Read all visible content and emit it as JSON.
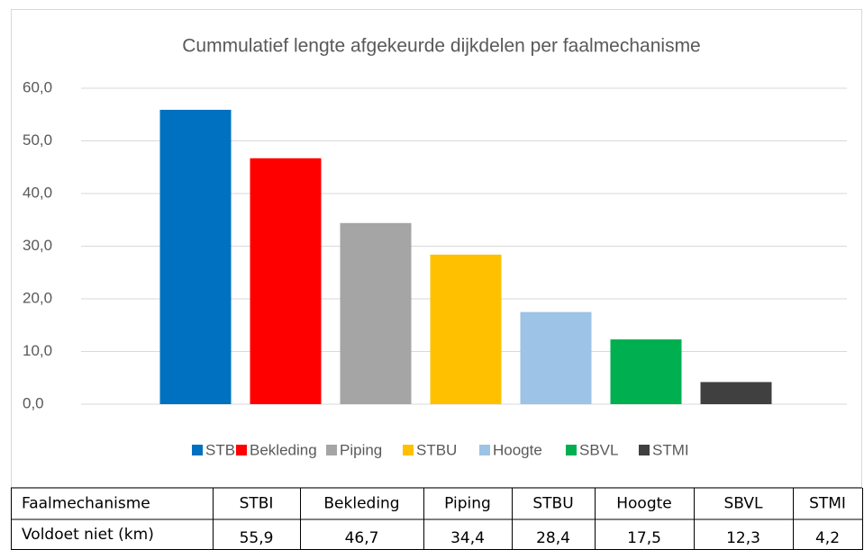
{
  "chart_data": {
    "type": "bar",
    "title": "Cummulatief lengte afgekeurde dijkdelen per faalmechanisme",
    "categories": [
      "STBI",
      "Bekleding",
      "Piping",
      "STBU",
      "Hoogte",
      "SBVL",
      "STMI"
    ],
    "values": [
      55.9,
      46.7,
      34.4,
      28.4,
      17.5,
      12.3,
      4.2
    ],
    "value_labels": [
      "55,9",
      "46,7",
      "34,4",
      "28,4",
      "17,5",
      "12,3",
      "4,2"
    ],
    "colors": [
      "#0070c0",
      "#ff0000",
      "#a5a5a5",
      "#ffc000",
      "#9dc3e6",
      "#00b050",
      "#404040"
    ],
    "ylim": [
      0,
      60
    ],
    "yticks": [
      {
        "value": 0,
        "label": "0,0"
      },
      {
        "value": 10,
        "label": "10,0"
      },
      {
        "value": 20,
        "label": "20,0"
      },
      {
        "value": 30,
        "label": "30,0"
      },
      {
        "value": 40,
        "label": "40,0"
      },
      {
        "value": 50,
        "label": "50,0"
      },
      {
        "value": 60,
        "label": "60,0"
      }
    ],
    "grid": true,
    "legend": "bottom",
    "data_table": {
      "header": "Faalmechanisme",
      "row_label": "Voldoet niet (km)"
    }
  }
}
